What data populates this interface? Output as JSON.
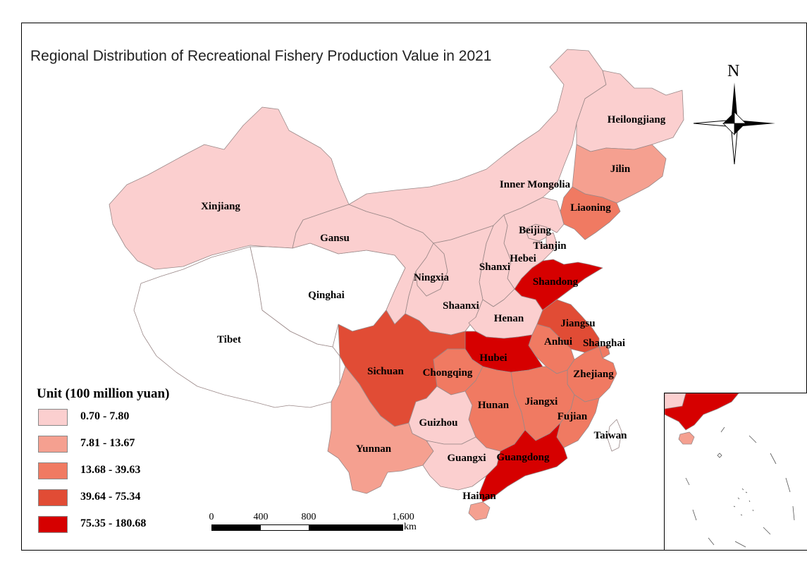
{
  "title": "Regional Distribution of Recreational Fishery Production Value in 2021",
  "north_label": "N",
  "legend": {
    "title": "Unit (100 million yuan)",
    "classes": [
      {
        "label": "0.70 - 7.80",
        "color": "#fbcfcf"
      },
      {
        "label": "7.81 - 13.67",
        "color": "#f5a090"
      },
      {
        "label": "13.68 - 39.63",
        "color": "#f07a62"
      },
      {
        "label": "39.64 - 75.34",
        "color": "#e14c35"
      },
      {
        "label": "75.35 - 180.68",
        "color": "#d60000"
      }
    ]
  },
  "scale_bar": {
    "ticks": [
      "0",
      "400",
      "800",
      "1,600"
    ],
    "unit": "km"
  },
  "no_data_color": "#ffffff",
  "provinces": [
    {
      "name": "Heilongjiang",
      "class": 0
    },
    {
      "name": "Jilin",
      "class": 1
    },
    {
      "name": "Liaoning",
      "class": 2
    },
    {
      "name": "Inner Mongolia",
      "class": 0
    },
    {
      "name": "Xinjiang",
      "class": 0
    },
    {
      "name": "Gansu",
      "class": 0
    },
    {
      "name": "Beijing",
      "class": 0
    },
    {
      "name": "Tianjin",
      "class": 0
    },
    {
      "name": "Hebei",
      "class": 0
    },
    {
      "name": "Shanxi",
      "class": 0
    },
    {
      "name": "Ningxia",
      "class": 0
    },
    {
      "name": "Shaanxi",
      "class": 0
    },
    {
      "name": "Qinghai",
      "class": null
    },
    {
      "name": "Tibet",
      "class": null
    },
    {
      "name": "Shandong",
      "class": 4
    },
    {
      "name": "Henan",
      "class": 0
    },
    {
      "name": "Jiangsu",
      "class": 3
    },
    {
      "name": "Anhui",
      "class": 2
    },
    {
      "name": "Shanghai",
      "class": 2
    },
    {
      "name": "Hubei",
      "class": 4
    },
    {
      "name": "Sichuan",
      "class": 3
    },
    {
      "name": "Chongqing",
      "class": 2
    },
    {
      "name": "Zhejiang",
      "class": 2
    },
    {
      "name": "Hunan",
      "class": 2
    },
    {
      "name": "Jiangxi",
      "class": 2
    },
    {
      "name": "Guizhou",
      "class": 0
    },
    {
      "name": "Fujian",
      "class": 2
    },
    {
      "name": "Taiwan",
      "class": null
    },
    {
      "name": "Yunnan",
      "class": 1
    },
    {
      "name": "Guangxi",
      "class": 0
    },
    {
      "name": "Guangdong",
      "class": 4
    },
    {
      "name": "Hainan",
      "class": 1
    }
  ]
}
